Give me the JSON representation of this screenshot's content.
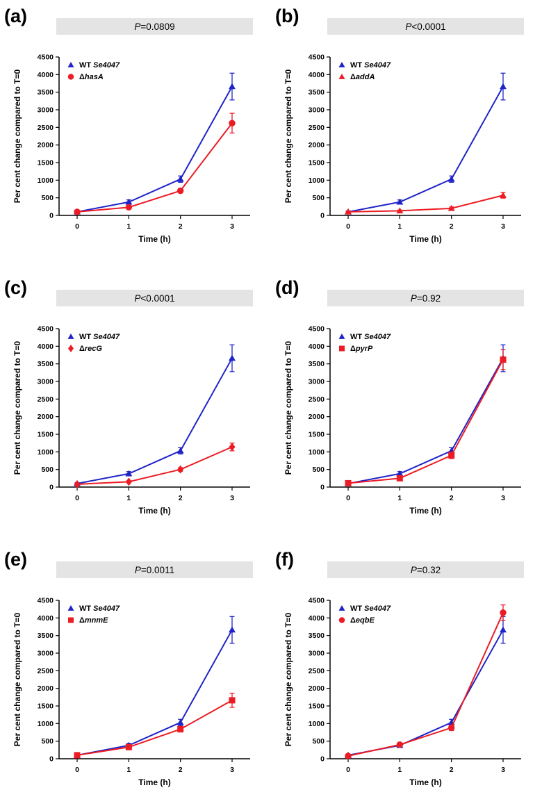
{
  "figure_colors": {
    "wt_blue": "#1f24c7",
    "mutant_red": "#ec1c24",
    "title_bar_bg": "#e4e4e4",
    "axis": "#000000"
  },
  "chart_data": [
    {
      "panel_label": "(a)",
      "type": "line",
      "title": {
        "italic": "P",
        "rest": "=0.0809"
      },
      "xlabel": "Time (h)",
      "ylabel": "Per cent change compared to T=0",
      "x": [
        0,
        1,
        2,
        3
      ],
      "ylim": [
        0,
        4500
      ],
      "ytick_step": 500,
      "legend_position": "top-left",
      "series": [
        {
          "label_prefix": "WT ",
          "label_italic": "Se4047",
          "marker": "triangle",
          "color": "#1f24c7",
          "values": [
            100,
            380,
            1030,
            3660
          ],
          "errors": [
            25,
            60,
            90,
            380
          ]
        },
        {
          "label_prefix": "Δ",
          "label_italic": "hasA",
          "marker": "circle",
          "color": "#ec1c24",
          "values": [
            100,
            230,
            700,
            2620
          ],
          "errors": [
            20,
            40,
            60,
            280
          ]
        }
      ]
    },
    {
      "panel_label": "(b)",
      "type": "line",
      "title": {
        "italic": "P",
        "rest": "<0.0001"
      },
      "xlabel": "Time (h)",
      "ylabel": "Per cent change compared to T=0",
      "x": [
        0,
        1,
        2,
        3
      ],
      "ylim": [
        0,
        4500
      ],
      "ytick_step": 500,
      "legend_position": "top-left",
      "series": [
        {
          "label_prefix": "WT ",
          "label_italic": "Se4047",
          "marker": "triangle",
          "color": "#1f24c7",
          "values": [
            100,
            380,
            1030,
            3660
          ],
          "errors": [
            25,
            60,
            90,
            380
          ]
        },
        {
          "label_prefix": "Δ",
          "label_italic": "addA",
          "marker": "triangle",
          "color": "#ec1c24",
          "values": [
            100,
            130,
            200,
            570
          ],
          "errors": [
            15,
            20,
            40,
            80
          ]
        }
      ]
    },
    {
      "panel_label": "(c)",
      "type": "line",
      "title": {
        "italic": "P",
        "rest": "<0.0001"
      },
      "xlabel": "Time (h)",
      "ylabel": "Per cent change compared to T=0",
      "x": [
        0,
        1,
        2,
        3
      ],
      "ylim": [
        0,
        4500
      ],
      "ytick_step": 500,
      "legend_position": "top-left",
      "series": [
        {
          "label_prefix": "WT ",
          "label_italic": "Se4047",
          "marker": "triangle",
          "color": "#1f24c7",
          "values": [
            100,
            380,
            1030,
            3660
          ],
          "errors": [
            25,
            60,
            90,
            380
          ]
        },
        {
          "label_prefix": "Δ",
          "label_italic": "recG",
          "marker": "diamond",
          "color": "#ec1c24",
          "values": [
            80,
            150,
            500,
            1140
          ],
          "errors": [
            15,
            30,
            50,
            110
          ]
        }
      ]
    },
    {
      "panel_label": "(d)",
      "type": "line",
      "title": {
        "italic": "P",
        "rest": "=0.92"
      },
      "xlabel": "Time (h)",
      "ylabel": "Per cent change compared to T=0",
      "x": [
        0,
        1,
        2,
        3
      ],
      "ylim": [
        0,
        4500
      ],
      "ytick_step": 500,
      "legend_position": "top-left",
      "series": [
        {
          "label_prefix": "WT ",
          "label_italic": "Se4047",
          "marker": "triangle",
          "color": "#1f24c7",
          "values": [
            100,
            380,
            1030,
            3660
          ],
          "errors": [
            25,
            60,
            90,
            380
          ]
        },
        {
          "label_prefix": "Δ",
          "label_italic": "pyrP",
          "marker": "square",
          "color": "#ec1c24",
          "values": [
            110,
            250,
            900,
            3620
          ],
          "errors": [
            20,
            40,
            90,
            280
          ]
        }
      ]
    },
    {
      "panel_label": "(e)",
      "type": "line",
      "title": {
        "italic": "P",
        "rest": "=0.0011"
      },
      "xlabel": "Time (h)",
      "ylabel": "Per cent change compared to T=0",
      "x": [
        0,
        1,
        2,
        3
      ],
      "ylim": [
        0,
        4500
      ],
      "ytick_step": 500,
      "legend_position": "top-left",
      "series": [
        {
          "label_prefix": "WT ",
          "label_italic": "Se4047",
          "marker": "triangle",
          "color": "#1f24c7",
          "values": [
            100,
            380,
            1030,
            3660
          ],
          "errors": [
            25,
            60,
            90,
            380
          ]
        },
        {
          "label_prefix": "Δ",
          "label_italic": "mnmE",
          "marker": "square",
          "color": "#ec1c24",
          "values": [
            100,
            330,
            840,
            1660
          ],
          "errors": [
            20,
            50,
            80,
            200
          ]
        }
      ]
    },
    {
      "panel_label": "(f)",
      "type": "line",
      "title": {
        "italic": "P",
        "rest": "=0.32"
      },
      "xlabel": "Time (h)",
      "ylabel": "Per cent change compared to T=0",
      "x": [
        0,
        1,
        2,
        3
      ],
      "ylim": [
        0,
        4500
      ],
      "ytick_step": 500,
      "legend_position": "top-left",
      "series": [
        {
          "label_prefix": "WT ",
          "label_italic": "Se4047",
          "marker": "triangle",
          "color": "#1f24c7",
          "values": [
            100,
            380,
            1030,
            3660
          ],
          "errors": [
            25,
            60,
            90,
            380
          ]
        },
        {
          "label_prefix": "Δ",
          "label_italic": "eqbE",
          "marker": "circle",
          "color": "#ec1c24",
          "values": [
            80,
            400,
            880,
            4150
          ],
          "errors": [
            15,
            40,
            80,
            220
          ]
        }
      ]
    }
  ]
}
